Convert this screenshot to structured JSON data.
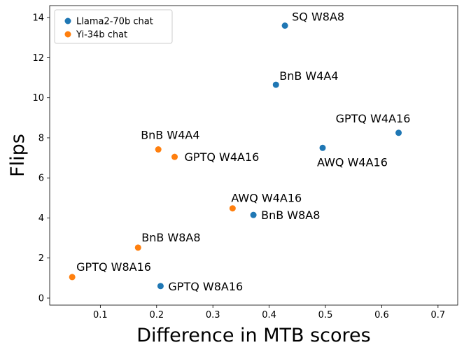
{
  "chart_data": {
    "type": "scatter",
    "xlabel": "Difference in MTB scores",
    "ylabel": "Flips",
    "xlim": [
      0.01,
      0.735
    ],
    "ylim": [
      -0.35,
      14.6
    ],
    "xticks": [
      0.1,
      0.2,
      0.3,
      0.4,
      0.5,
      0.6,
      0.7
    ],
    "xtick_labels": [
      "0.1",
      "0.2",
      "0.3",
      "0.4",
      "0.5",
      "0.6",
      "0.7"
    ],
    "yticks": [
      0,
      2,
      4,
      6,
      8,
      10,
      12,
      14
    ],
    "ytick_labels": [
      "0",
      "2",
      "4",
      "6",
      "8",
      "10",
      "12",
      "14"
    ],
    "grid": false,
    "legend_position": "top-left",
    "series": [
      {
        "name": "Llama2-70b chat",
        "color": "#1f77b4",
        "points": [
          {
            "x": 0.428,
            "y": 13.6,
            "label": "SQ W8A8"
          },
          {
            "x": 0.412,
            "y": 10.65,
            "label": "BnB W4A4"
          },
          {
            "x": 0.63,
            "y": 8.25,
            "label": "GPTQ W4A16"
          },
          {
            "x": 0.495,
            "y": 7.5,
            "label": "AWQ W4A16"
          },
          {
            "x": 0.372,
            "y": 4.15,
            "label": "BnB W8A8"
          },
          {
            "x": 0.207,
            "y": 0.6,
            "label": "GPTQ W8A16"
          }
        ]
      },
      {
        "name": "Yi-34b chat",
        "color": "#ff7f0e",
        "points": [
          {
            "x": 0.203,
            "y": 7.42,
            "label": "BnB W4A4"
          },
          {
            "x": 0.232,
            "y": 7.05,
            "label": "GPTQ W4A16"
          },
          {
            "x": 0.335,
            "y": 4.48,
            "label": "AWQ W4A16"
          },
          {
            "x": 0.167,
            "y": 2.52,
            "label": "BnB W8A8"
          },
          {
            "x": 0.05,
            "y": 1.05,
            "label": "GPTQ W8A16"
          }
        ]
      }
    ]
  }
}
